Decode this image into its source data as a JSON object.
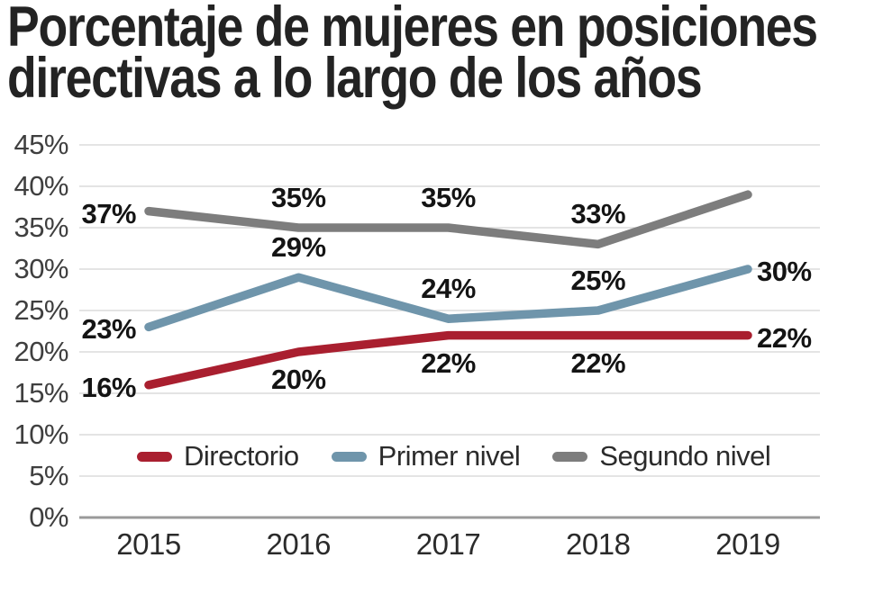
{
  "title": {
    "line1": "Porcentaje de mujeres en posiciones",
    "line2": "directivas a lo largo de los años"
  },
  "chart_data": {
    "type": "line",
    "x": [
      "2015",
      "2016",
      "2017",
      "2018",
      "2019"
    ],
    "series": [
      {
        "name": "Directorio",
        "color": "#a91f2f",
        "values": [
          16,
          20,
          22,
          22,
          22
        ],
        "point_labels": [
          "16%",
          "20%",
          "22%",
          "22%",
          "22%"
        ],
        "label_placement": [
          "left",
          "below",
          "below",
          "below",
          "right"
        ]
      },
      {
        "name": "Primer nivel",
        "color": "#6f95ab",
        "values": [
          23,
          29,
          24,
          25,
          30
        ],
        "point_labels": [
          "23%",
          "29%",
          "24%",
          "25%",
          "30%"
        ],
        "label_placement": [
          "left",
          "above",
          "above",
          "above",
          "right"
        ]
      },
      {
        "name": "Segundo nivel",
        "color": "#7d7d7d",
        "values": [
          37,
          35,
          35,
          33,
          39
        ],
        "point_labels": [
          "37%",
          "35%",
          "35%",
          "33%",
          ""
        ],
        "label_placement": [
          "left",
          "above",
          "above",
          "above",
          "none"
        ]
      }
    ],
    "xlabel": "",
    "ylabel": "",
    "ylim": [
      0,
      45
    ],
    "yticks": [
      "45%",
      "40%",
      "35%",
      "30%",
      "25%",
      "20%",
      "15%",
      "10%",
      "5%",
      "0%"
    ],
    "ytick_values": [
      45,
      40,
      35,
      30,
      25,
      20,
      15,
      10,
      5,
      0
    ],
    "grid": true,
    "legend": {
      "position": "inside-bottom"
    },
    "colors": {
      "grid": "#dcdcdc",
      "axis": "#9a9a9a",
      "tick_text": "#3f3f3f",
      "data_label_text": "#141414",
      "title_text": "#232323"
    }
  }
}
